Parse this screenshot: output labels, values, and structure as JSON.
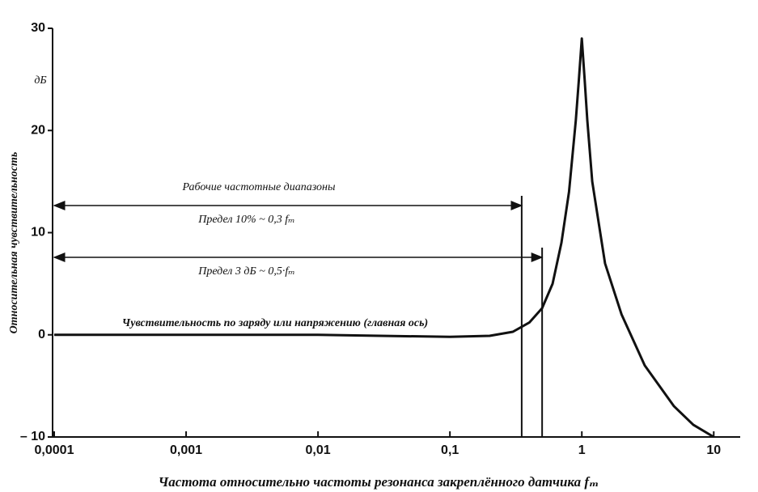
{
  "chart_data": {
    "type": "line",
    "x_label": "Частота относительно частоты резонанса закреплённого датчика fₘ",
    "y_label": "Относительная чувствительность",
    "y_unit": "дБ",
    "x_scale": "log",
    "x": [
      0.0001,
      0.001,
      0.01,
      0.1,
      0.2,
      0.3,
      0.4,
      0.5,
      0.6,
      0.7,
      0.8,
      0.9,
      0.95,
      1,
      1.05,
      1.1,
      1.2,
      1.5,
      2,
      3,
      5,
      7,
      10
    ],
    "values": [
      0,
      0,
      0,
      -0.2,
      -0.1,
      0.3,
      1.2,
      2.6,
      5,
      9,
      14,
      21,
      25,
      29,
      25,
      21,
      15,
      7,
      2,
      -3,
      -7,
      -8.8,
      -10
    ],
    "color": "#111111",
    "xlim": [
      0.0001,
      15
    ],
    "ylim": [
      -10,
      30
    ],
    "xticks": [
      {
        "value": 0.0001,
        "label": "0,0001"
      },
      {
        "value": 0.001,
        "label": "0,001"
      },
      {
        "value": 0.01,
        "label": "0,01"
      },
      {
        "value": 0.1,
        "label": "0,1"
      },
      1,
      10
    ],
    "yticks": [
      {
        "value": -10,
        "label": "– 10"
      },
      0,
      10,
      20,
      30
    ],
    "range_title": "Рабочие частотные диапазоны",
    "limits": [
      {
        "x": 0.35,
        "label": "Предел 10% ~ 0,3 fₘ"
      },
      {
        "x": 0.5,
        "label": "Предел 3 дБ ~ 0,5·fₘ"
      }
    ],
    "curve_label": "Чувствительность по заряду или напряжению (главная ось)"
  }
}
